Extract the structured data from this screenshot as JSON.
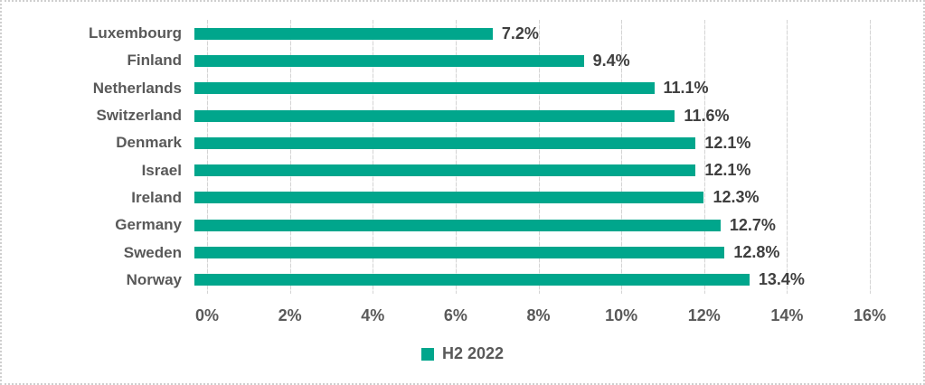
{
  "chart_data": {
    "type": "bar",
    "orientation": "horizontal",
    "title": "",
    "categories": [
      "Luxembourg",
      "Finland",
      "Netherlands",
      "Switzerland",
      "Denmark",
      "Israel",
      "Ireland",
      "Germany",
      "Sweden",
      "Norway"
    ],
    "values": [
      7.2,
      9.4,
      11.1,
      11.6,
      12.1,
      12.1,
      12.3,
      12.7,
      12.8,
      13.4
    ],
    "data_labels": [
      "7.2%",
      "9.4%",
      "11.1%",
      "11.6%",
      "12.1%",
      "12.1%",
      "12.3%",
      "12.7%",
      "12.8%",
      "13.4%"
    ],
    "series_name": "H2 2022",
    "x_ticks": [
      "0%",
      "2%",
      "4%",
      "6%",
      "8%",
      "10%",
      "12%",
      "14%",
      "16%"
    ],
    "x_max": 16,
    "x_tick_step": 2,
    "xlim": [
      0,
      16
    ],
    "grid": true,
    "legend": {
      "label": "H2 2022",
      "position": "bottom-center"
    },
    "colors": {
      "bar": "#00A68C",
      "gridline": "#D4D4D4",
      "category_text": "#595959",
      "value_text": "#3F3F3F",
      "border": "#CFCFCF"
    }
  }
}
